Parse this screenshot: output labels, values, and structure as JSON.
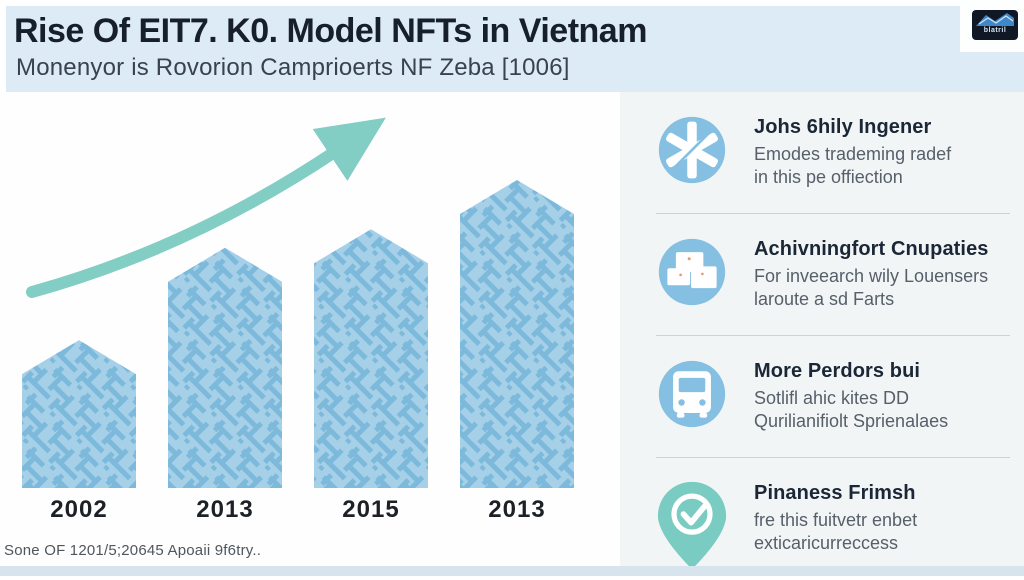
{
  "header": {
    "title": "Rise Of EIT7. K0. Model NFTs in Vietnam",
    "subtitle": "Monenyor is Rovorion Camprioerts NF Zeba [1006]",
    "badge_text": "blatril"
  },
  "chart_data": {
    "type": "bar",
    "title": "Rise Of EIT7. K0. Model NFTs in Vietnam",
    "categories": [
      "2002",
      "2013",
      "2015",
      "2013"
    ],
    "values": [
      48,
      78,
      84,
      100
    ],
    "xlabel": "",
    "ylabel": "",
    "ylim": [
      0,
      100
    ],
    "grid": false,
    "legend": "none",
    "annotations": [
      "upward trend arrow"
    ],
    "source": "Sone OF 1201/5;20645 Apoaii 9f6try.."
  },
  "colors": {
    "icon_blue": "#85bfe2",
    "icon_teal": "#7accc2",
    "arrow": "#82cdc4",
    "bar_base": "#a5d0e8",
    "bar_line": "#7cb9db",
    "band": "#dcebf5"
  },
  "sidebar": {
    "items": [
      {
        "icon": "asterisk-icon",
        "title": "Johs 6hily Ingener",
        "line1": "Emodes trademing radef",
        "line2": "in this pe offiection"
      },
      {
        "icon": "boxes-icon",
        "title": "Achivningfort Cnupaties",
        "line1": "For inveearch wily Louensers",
        "line2": "laroute a sd Farts"
      },
      {
        "icon": "bus-icon",
        "title": "More Perdors bui",
        "line1": "Sotlifl ahic kites DD",
        "line2": "Qurilianifiolt Sprienalaes"
      },
      {
        "icon": "pin-check-icon",
        "title": "Pinaness Frimsh",
        "line1": "fre this fuitvetr enbet",
        "line2": "exticaricurreccess"
      }
    ]
  },
  "footer": {
    "source": "Sone OF 1201/5;20645 Apoaii 9f6try.."
  }
}
